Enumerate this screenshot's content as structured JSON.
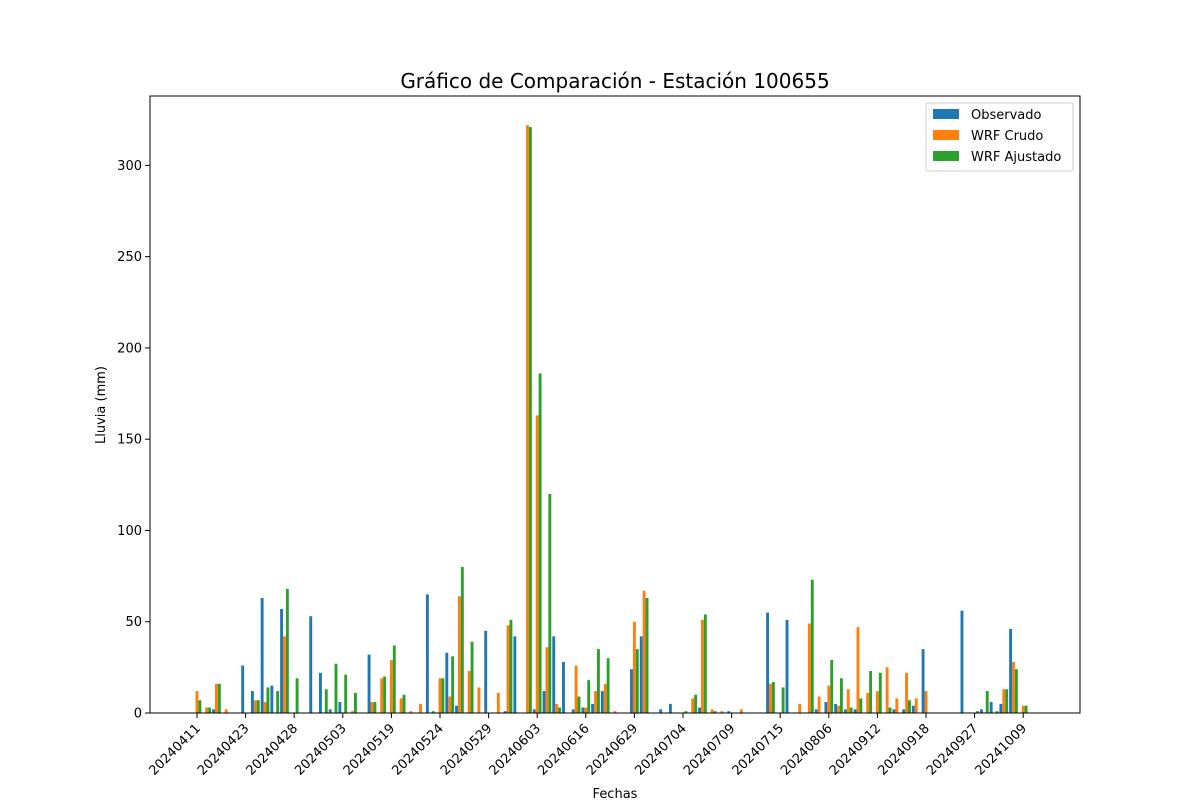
{
  "chart_data": {
    "type": "bar",
    "title": "Gráfico de Comparación - Estación 100655",
    "xlabel": "Fechas",
    "ylabel": "Lluvia (mm)",
    "ylim": [
      0,
      338
    ],
    "yticks": [
      0,
      50,
      100,
      150,
      200,
      250,
      300
    ],
    "x_tick_labels": [
      "20240411",
      "20240423",
      "20240428",
      "20240503",
      "20240519",
      "20240524",
      "20240529",
      "20240603",
      "20240616",
      "20240629",
      "20240704",
      "20240709",
      "20240715",
      "20240806",
      "20240912",
      "20240918",
      "20240927",
      "20241009"
    ],
    "legend_position": "top-right",
    "grid": false,
    "n_categories": 85,
    "series": [
      {
        "name": "Observado",
        "color": "#1f77b4",
        "values": [
          0,
          0,
          2,
          0,
          0,
          26,
          12,
          63,
          15,
          57,
          0,
          0,
          53,
          22,
          2,
          6,
          0,
          0,
          32,
          0,
          0,
          0,
          0,
          0,
          65,
          0,
          33,
          4,
          0,
          0,
          45,
          0,
          1,
          42,
          0,
          2,
          12,
          42,
          28,
          2,
          3,
          5,
          12,
          0,
          0,
          24,
          42,
          0,
          2,
          5,
          0,
          0,
          3,
          0,
          0,
          1,
          0,
          0,
          0,
          55,
          0,
          51,
          0,
          0,
          2,
          6,
          5,
          2,
          2,
          0,
          0,
          0,
          2,
          2,
          4,
          35,
          0,
          0,
          0,
          56,
          0,
          2,
          6,
          5,
          46
        ]
      },
      {
        "name": "WRF Crudo",
        "color": "#ff7f0e",
        "values": [
          12,
          3,
          16,
          2,
          0,
          0,
          7,
          6,
          0,
          42,
          0,
          0,
          0,
          0,
          0,
          0,
          1,
          0,
          6,
          19,
          29,
          8,
          1,
          5,
          0,
          19,
          9,
          64,
          23,
          14,
          0,
          11,
          48,
          0,
          322,
          163,
          36,
          5,
          0,
          26,
          3,
          12,
          16,
          1,
          0,
          50,
          67,
          0,
          0,
          0,
          0,
          8,
          51,
          2,
          1,
          0,
          2,
          0,
          0,
          16,
          0,
          0,
          5,
          49,
          9,
          15,
          4,
          13,
          47,
          11,
          12,
          25,
          8,
          22,
          8,
          12,
          0,
          0,
          0,
          0,
          0,
          0,
          0,
          13,
          28
        ]
      },
      {
        "name": "WRF Ajustado",
        "color": "#2ca02c",
        "values": [
          7,
          3,
          16,
          0,
          0,
          0,
          7,
          14,
          12,
          68,
          19,
          0,
          0,
          13,
          27,
          21,
          11,
          0,
          6,
          20,
          37,
          10,
          0,
          0,
          1,
          19,
          31,
          80,
          39,
          0,
          0,
          0,
          51,
          0,
          321,
          186,
          120,
          3,
          0,
          9,
          18,
          35,
          30,
          0,
          0,
          35,
          63,
          0,
          0,
          0,
          1,
          10,
          54,
          1,
          0,
          0,
          0,
          0,
          0,
          17,
          14,
          0,
          0,
          73,
          0,
          29,
          19,
          3,
          8,
          23,
          22,
          3,
          0,
          7,
          0,
          0,
          0,
          0,
          0,
          0,
          1,
          12,
          1,
          13,
          24
        ]
      }
    ],
    "extra_tail_values": {
      "WRF Crudo": [
        4
      ],
      "WRF Ajustado": [
        4
      ]
    }
  }
}
